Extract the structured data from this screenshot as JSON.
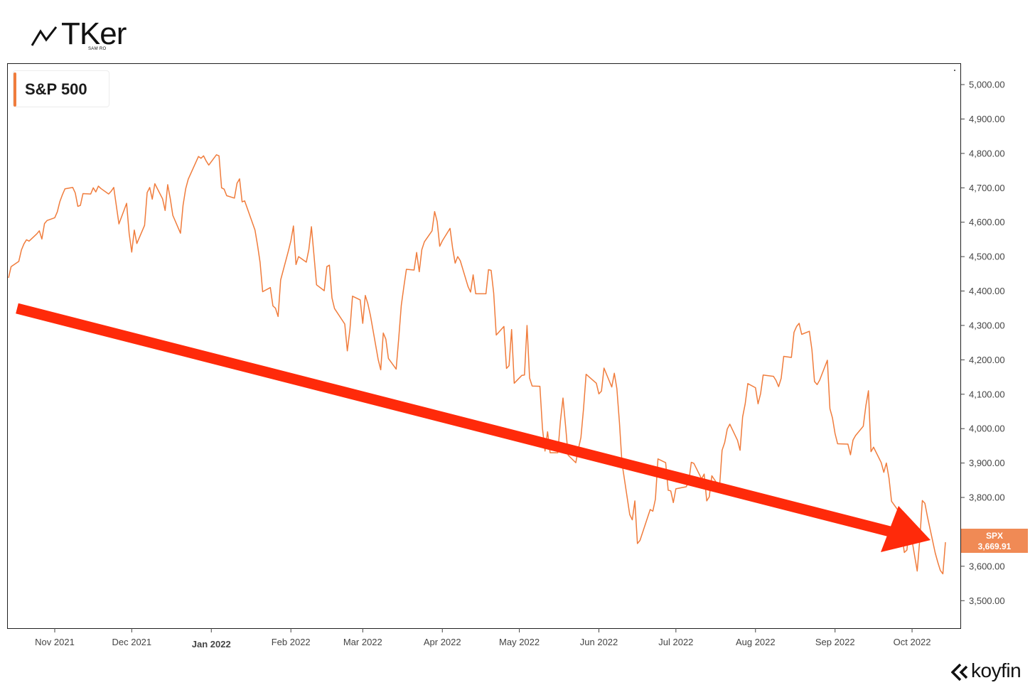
{
  "brand": {
    "name": "TKer",
    "byline": "SAM RO",
    "icon": "trend-line-icon"
  },
  "footer": {
    "name": "koyfin",
    "icon": "koyfin-chevron-icon"
  },
  "colors": {
    "line": "#f07c3c",
    "arrow": "#ff2a0a",
    "tag": "#f08a55"
  },
  "chart_data": {
    "type": "line",
    "series": [
      {
        "name": "S&P 500",
        "ticker": "SPX",
        "last": "3,669.91"
      }
    ],
    "ylim": [
      3420,
      5060
    ],
    "yticks": [
      {
        "v": 5000,
        "label": "5,000.00"
      },
      {
        "v": 4900,
        "label": "4,900.00"
      },
      {
        "v": 4800,
        "label": "4,800.00"
      },
      {
        "v": 4700,
        "label": "4,700.00"
      },
      {
        "v": 4600,
        "label": "4,600.00"
      },
      {
        "v": 4500,
        "label": "4,500.00"
      },
      {
        "v": 4400,
        "label": "4,400.00"
      },
      {
        "v": 4300,
        "label": "4,300.00"
      },
      {
        "v": 4200,
        "label": "4,200.00"
      },
      {
        "v": 4100,
        "label": "4,100.00"
      },
      {
        "v": 4000,
        "label": "4,000.00"
      },
      {
        "v": 3900,
        "label": "3,900.00"
      },
      {
        "v": 3800,
        "label": "3,800.00"
      },
      {
        "v": 3700,
        "label": "3,700.00"
      },
      {
        "v": 3600,
        "label": "3,600.00"
      },
      {
        "v": 3500,
        "label": "3,500.00"
      }
    ],
    "xlim": [
      "2021-10-14",
      "2022-10-14"
    ],
    "xticks": [
      {
        "d": "2021-11-01",
        "label": "Nov 2021",
        "bold": false
      },
      {
        "d": "2021-12-01",
        "label": "Dec 2021",
        "bold": false
      },
      {
        "d": "2022-01-01",
        "label": "Jan 2022",
        "bold": true
      },
      {
        "d": "2022-02-01",
        "label": "Feb 2022",
        "bold": false
      },
      {
        "d": "2022-03-01",
        "label": "Mar 2022",
        "bold": false
      },
      {
        "d": "2022-04-01",
        "label": "Apr 2022",
        "bold": false
      },
      {
        "d": "2022-05-01",
        "label": "May 2022",
        "bold": false
      },
      {
        "d": "2022-06-01",
        "label": "Jun 2022",
        "bold": false
      },
      {
        "d": "2022-07-01",
        "label": "Jul 2022",
        "bold": false
      },
      {
        "d": "2022-08-01",
        "label": "Aug 2022",
        "bold": false
      },
      {
        "d": "2022-09-01",
        "label": "Sep 2022",
        "bold": false
      },
      {
        "d": "2022-10-01",
        "label": "Oct 2022",
        "bold": false
      }
    ],
    "x": [
      "2021-10-14",
      "2021-10-15",
      "2021-10-18",
      "2021-10-19",
      "2021-10-20",
      "2021-10-21",
      "2021-10-22",
      "2021-10-25",
      "2021-10-26",
      "2021-10-27",
      "2021-10-28",
      "2021-10-29",
      "2021-11-01",
      "2021-11-02",
      "2021-11-03",
      "2021-11-04",
      "2021-11-05",
      "2021-11-08",
      "2021-11-09",
      "2021-11-10",
      "2021-11-11",
      "2021-11-12",
      "2021-11-15",
      "2021-11-16",
      "2021-11-17",
      "2021-11-18",
      "2021-11-19",
      "2021-11-22",
      "2021-11-23",
      "2021-11-24",
      "2021-11-26",
      "2021-11-29",
      "2021-11-30",
      "2021-12-01",
      "2021-12-02",
      "2021-12-03",
      "2021-12-06",
      "2021-12-07",
      "2021-12-08",
      "2021-12-09",
      "2021-12-10",
      "2021-12-13",
      "2021-12-14",
      "2021-12-15",
      "2021-12-16",
      "2021-12-17",
      "2021-12-20",
      "2021-12-21",
      "2021-12-22",
      "2021-12-23",
      "2021-12-27",
      "2021-12-28",
      "2021-12-29",
      "2021-12-30",
      "2021-12-31",
      "2022-01-03",
      "2022-01-04",
      "2022-01-05",
      "2022-01-06",
      "2022-01-07",
      "2022-01-10",
      "2022-01-11",
      "2022-01-12",
      "2022-01-13",
      "2022-01-14",
      "2022-01-18",
      "2022-01-19",
      "2022-01-20",
      "2022-01-21",
      "2022-01-24",
      "2022-01-25",
      "2022-01-26",
      "2022-01-27",
      "2022-01-28",
      "2022-01-31",
      "2022-02-01",
      "2022-02-02",
      "2022-02-03",
      "2022-02-04",
      "2022-02-07",
      "2022-02-08",
      "2022-02-09",
      "2022-02-10",
      "2022-02-11",
      "2022-02-14",
      "2022-02-15",
      "2022-02-16",
      "2022-02-17",
      "2022-02-18",
      "2022-02-22",
      "2022-02-23",
      "2022-02-24",
      "2022-02-25",
      "2022-02-28",
      "2022-03-01",
      "2022-03-02",
      "2022-03-03",
      "2022-03-04",
      "2022-03-07",
      "2022-03-08",
      "2022-03-09",
      "2022-03-10",
      "2022-03-11",
      "2022-03-14",
      "2022-03-15",
      "2022-03-16",
      "2022-03-17",
      "2022-03-18",
      "2022-03-21",
      "2022-03-22",
      "2022-03-23",
      "2022-03-24",
      "2022-03-25",
      "2022-03-28",
      "2022-03-29",
      "2022-03-30",
      "2022-03-31",
      "2022-04-01",
      "2022-04-04",
      "2022-04-05",
      "2022-04-06",
      "2022-04-07",
      "2022-04-08",
      "2022-04-11",
      "2022-04-12",
      "2022-04-13",
      "2022-04-14",
      "2022-04-18",
      "2022-04-19",
      "2022-04-20",
      "2022-04-21",
      "2022-04-22",
      "2022-04-25",
      "2022-04-26",
      "2022-04-27",
      "2022-04-28",
      "2022-04-29",
      "2022-05-02",
      "2022-05-03",
      "2022-05-04",
      "2022-05-05",
      "2022-05-06",
      "2022-05-09",
      "2022-05-10",
      "2022-05-11",
      "2022-05-12",
      "2022-05-13",
      "2022-05-16",
      "2022-05-17",
      "2022-05-18",
      "2022-05-19",
      "2022-05-20",
      "2022-05-23",
      "2022-05-24",
      "2022-05-25",
      "2022-05-26",
      "2022-05-27",
      "2022-05-31",
      "2022-06-01",
      "2022-06-02",
      "2022-06-03",
      "2022-06-06",
      "2022-06-07",
      "2022-06-08",
      "2022-06-09",
      "2022-06-10",
      "2022-06-13",
      "2022-06-14",
      "2022-06-15",
      "2022-06-16",
      "2022-06-17",
      "2022-06-21",
      "2022-06-22",
      "2022-06-23",
      "2022-06-24",
      "2022-06-27",
      "2022-06-28",
      "2022-06-29",
      "2022-06-30",
      "2022-07-01",
      "2022-07-05",
      "2022-07-06",
      "2022-07-07",
      "2022-07-08",
      "2022-07-11",
      "2022-07-12",
      "2022-07-13",
      "2022-07-14",
      "2022-07-15",
      "2022-07-18",
      "2022-07-19",
      "2022-07-20",
      "2022-07-21",
      "2022-07-22",
      "2022-07-25",
      "2022-07-26",
      "2022-07-27",
      "2022-07-28",
      "2022-07-29",
      "2022-08-01",
      "2022-08-02",
      "2022-08-03",
      "2022-08-04",
      "2022-08-05",
      "2022-08-08",
      "2022-08-09",
      "2022-08-10",
      "2022-08-11",
      "2022-08-12",
      "2022-08-15",
      "2022-08-16",
      "2022-08-17",
      "2022-08-18",
      "2022-08-19",
      "2022-08-22",
      "2022-08-23",
      "2022-08-24",
      "2022-08-25",
      "2022-08-26",
      "2022-08-29",
      "2022-08-30",
      "2022-08-31",
      "2022-09-01",
      "2022-09-02",
      "2022-09-06",
      "2022-09-07",
      "2022-09-08",
      "2022-09-09",
      "2022-09-12",
      "2022-09-13",
      "2022-09-14",
      "2022-09-15",
      "2022-09-16",
      "2022-09-19",
      "2022-09-20",
      "2022-09-21",
      "2022-09-22",
      "2022-09-23",
      "2022-09-26",
      "2022-09-27",
      "2022-09-28",
      "2022-09-29",
      "2022-09-30",
      "2022-10-03",
      "2022-10-04",
      "2022-10-05",
      "2022-10-06",
      "2022-10-07",
      "2022-10-10",
      "2022-10-11",
      "2022-10-12",
      "2022-10-13",
      "2022-10-14"
    ],
    "y": [
      4438,
      4471,
      4486,
      4519,
      4537,
      4549,
      4545,
      4566,
      4575,
      4551,
      4596,
      4605,
      4613,
      4630,
      4660,
      4680,
      4697,
      4701,
      4685,
      4646,
      4649,
      4683,
      4682,
      4700,
      4688,
      4705,
      4698,
      4682,
      4690,
      4701,
      4595,
      4655,
      4567,
      4513,
      4577,
      4538,
      4591,
      4686,
      4701,
      4667,
      4712,
      4668,
      4634,
      4709,
      4669,
      4620,
      4568,
      4649,
      4697,
      4725,
      4791,
      4786,
      4793,
      4778,
      4766,
      4796,
      4793,
      4700,
      4696,
      4677,
      4670,
      4713,
      4726,
      4659,
      4662,
      4577,
      4533,
      4483,
      4398,
      4410,
      4357,
      4350,
      4326,
      4432,
      4516,
      4546,
      4589,
      4477,
      4500,
      4484,
      4521,
      4587,
      4504,
      4418,
      4401,
      4471,
      4475,
      4380,
      4349,
      4304,
      4226,
      4289,
      4385,
      4374,
      4306,
      4387,
      4363,
      4329,
      4201,
      4171,
      4278,
      4260,
      4204,
      4173,
      4262,
      4358,
      4412,
      4463,
      4461,
      4512,
      4456,
      4520,
      4543,
      4575,
      4631,
      4602,
      4530,
      4546,
      4582,
      4525,
      4481,
      4500,
      4488,
      4413,
      4397,
      4447,
      4392,
      4392,
      4462,
      4460,
      4394,
      4272,
      4297,
      4175,
      4183,
      4288,
      4132,
      4155,
      4156,
      4300,
      4147,
      4124,
      4123,
      4001,
      3935,
      3991,
      3930,
      3930,
      4023,
      4089,
      4008,
      3923,
      3901,
      3941,
      3974,
      4058,
      4158,
      4132,
      4101,
      4109,
      4176,
      4121,
      4161,
      4116,
      4018,
      3900,
      3750,
      3735,
      3790,
      3666,
      3675,
      3765,
      3760,
      3795,
      3912,
      3901,
      3821,
      3819,
      3785,
      3825,
      3831,
      3845,
      3902,
      3899,
      3854,
      3868,
      3790,
      3802,
      3863,
      3830,
      3937,
      3960,
      3999,
      4013,
      3966,
      3937,
      4034,
      4072,
      4131,
      4119,
      4072,
      4102,
      4156,
      4155,
      4152,
      4140,
      4122,
      4146,
      4210,
      4207,
      4280,
      4297,
      4306,
      4274,
      4283,
      4229,
      4137,
      4128,
      4141,
      4199,
      4058,
      4031,
      3986,
      3956,
      3955,
      3924,
      3967,
      3980,
      4007,
      4067,
      4110,
      3933,
      3946,
      3901,
      3873,
      3900,
      3856,
      3789,
      3758,
      3694,
      3640,
      3647,
      3719,
      3586,
      3678,
      3791,
      3783,
      3744,
      3639,
      3612,
      3588,
      3578,
      3669.91
    ]
  }
}
